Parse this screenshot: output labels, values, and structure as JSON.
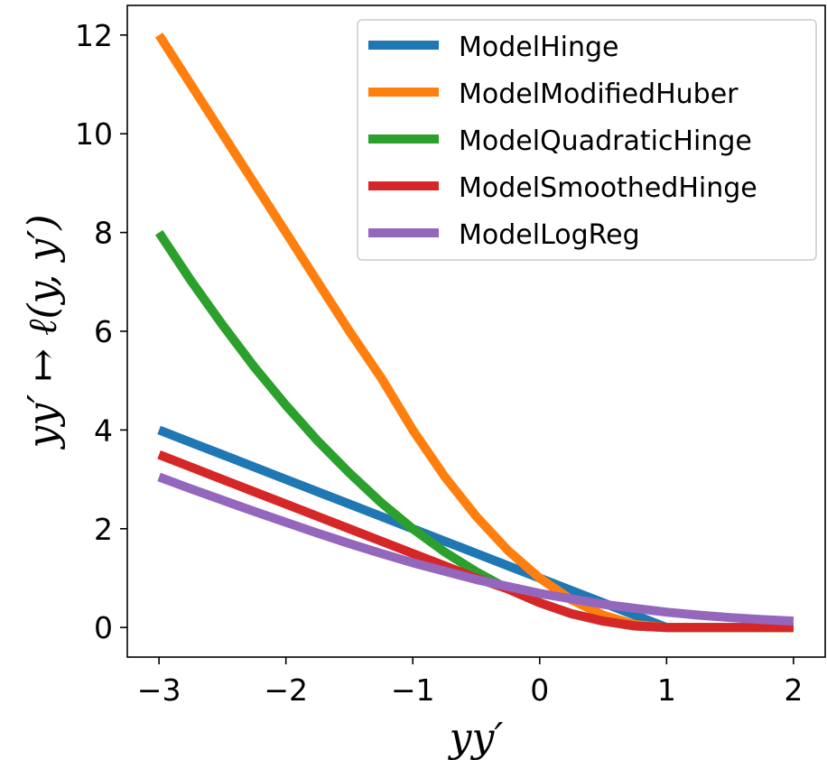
{
  "chart_data": {
    "type": "line",
    "title": "",
    "xlabel": "yy′",
    "ylabel": "yy′ ↦ ℓ(y, y′)",
    "xlim": [
      -3.25,
      2.25
    ],
    "ylim": [
      -0.6,
      12.6
    ],
    "xticks": [
      -3,
      -2,
      -1,
      0,
      1,
      2
    ],
    "xtick_labels": [
      "−3",
      "−2",
      "−1",
      "0",
      "1",
      "2"
    ],
    "yticks": [
      0,
      2,
      4,
      6,
      8,
      10,
      12
    ],
    "ytick_labels": [
      "0",
      "2",
      "4",
      "6",
      "8",
      "10",
      "12"
    ],
    "grid": false,
    "legend_position": "top-right",
    "x": [
      -3.0,
      -2.75,
      -2.5,
      -2.25,
      -2.0,
      -1.75,
      -1.5,
      -1.25,
      -1.0,
      -0.75,
      -0.5,
      -0.25,
      0.0,
      0.25,
      0.5,
      0.75,
      1.0,
      1.25,
      1.5,
      1.75,
      2.0
    ],
    "series": [
      {
        "name": "ModelHinge",
        "color": "#1f77b4",
        "values": [
          4.0,
          3.75,
          3.5,
          3.25,
          3.0,
          2.75,
          2.5,
          2.25,
          2.0,
          1.75,
          1.5,
          1.25,
          1.0,
          0.75,
          0.5,
          0.25,
          0.0,
          0.0,
          0.0,
          0.0,
          0.0
        ]
      },
      {
        "name": "ModelModifiedHuber",
        "color": "#ff7f0e",
        "values": [
          12.0,
          11.0,
          10.0,
          9.0,
          8.0,
          7.0,
          6.0,
          5.06,
          4.0,
          3.06,
          2.25,
          1.56,
          1.0,
          0.56,
          0.25,
          0.06,
          0.0,
          0.0,
          0.0,
          0.0,
          0.0
        ]
      },
      {
        "name": "ModelQuadraticHinge",
        "color": "#2ca02c",
        "values": [
          8.0,
          7.03,
          6.13,
          5.28,
          4.5,
          3.78,
          3.13,
          2.53,
          2.0,
          1.53,
          1.13,
          0.78,
          0.5,
          0.28,
          0.13,
          0.03,
          0.0,
          0.0,
          0.0,
          0.0,
          0.0
        ]
      },
      {
        "name": "ModelSmoothedHinge",
        "color": "#d62728",
        "values": [
          3.5,
          3.25,
          3.0,
          2.75,
          2.5,
          2.25,
          2.0,
          1.75,
          1.5,
          1.25,
          1.0,
          0.78,
          0.5,
          0.28,
          0.13,
          0.03,
          0.0,
          0.0,
          0.0,
          0.0,
          0.0
        ]
      },
      {
        "name": "ModelLogReg",
        "color": "#9467bd",
        "values": [
          3.05,
          2.81,
          2.58,
          2.35,
          2.13,
          1.91,
          1.7,
          1.5,
          1.31,
          1.14,
          0.97,
          0.83,
          0.69,
          0.58,
          0.47,
          0.39,
          0.31,
          0.25,
          0.2,
          0.16,
          0.13
        ]
      }
    ]
  }
}
